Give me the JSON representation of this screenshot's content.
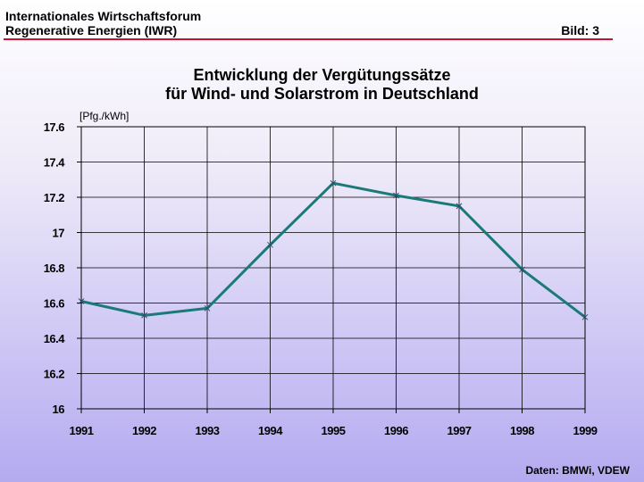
{
  "header": {
    "line1": "Internationales Wirtschaftsforum",
    "line2": "Regenerative Energien (IWR)",
    "figure": "Bild: 3"
  },
  "colors": {
    "accent_rule": "#c8102e",
    "series": "#1a7a78"
  },
  "chart_data": {
    "type": "line",
    "title_line1": "Entwicklung der Vergütungssätze",
    "title_line2": "für Wind- und Solarstrom in Deutschland",
    "ylabel": "[Pfg./kWh]",
    "xlabel": "",
    "x": [
      "1991",
      "1992",
      "1993",
      "1994",
      "1995",
      "1996",
      "1997",
      "1998",
      "1999"
    ],
    "yticks": [
      "16",
      "16.2",
      "16.4",
      "16.6",
      "16.8",
      "17",
      "17.2",
      "17.4",
      "17.6"
    ],
    "ylim": [
      16,
      17.6
    ],
    "grid": true,
    "series": [
      {
        "values": [
          16.61,
          16.53,
          16.57,
          16.93,
          17.28,
          17.21,
          17.15,
          16.79,
          16.52
        ]
      }
    ]
  },
  "source": "Daten: BMWi, VDEW"
}
